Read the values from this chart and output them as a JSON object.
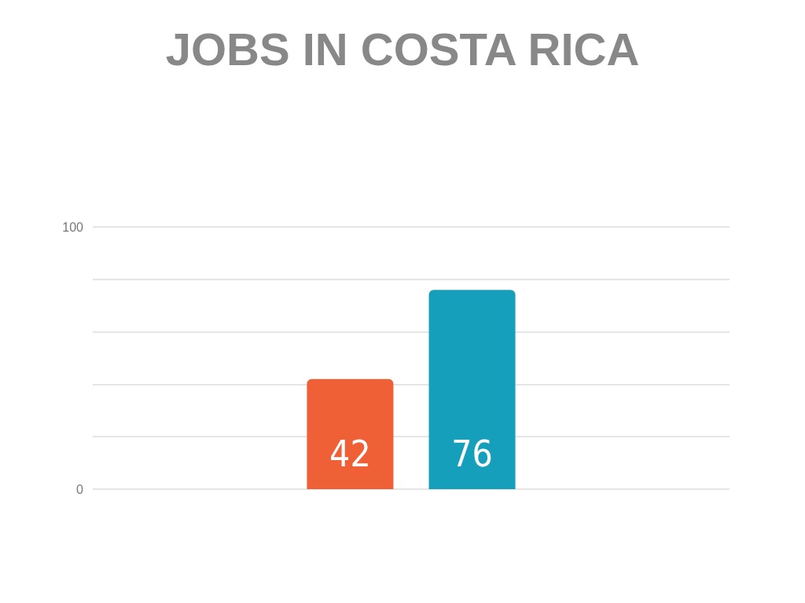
{
  "chart_data": {
    "type": "bar",
    "title": "JOBS IN COSTA RICA",
    "categories": [
      null
    ],
    "series": [
      {
        "color": "#f06036",
        "values": [
          42
        ]
      },
      {
        "color": "#169fbb",
        "values": [
          76
        ]
      }
    ],
    "ylim": [
      0,
      100
    ],
    "yticks": [
      0,
      {
        "value": 20,
        "label": null
      },
      {
        "value": 40,
        "label": null
      },
      {
        "value": 60,
        "label": null
      },
      {
        "value": 80,
        "label": null
      },
      100
    ],
    "grid": "y",
    "data_labels": true
  }
}
